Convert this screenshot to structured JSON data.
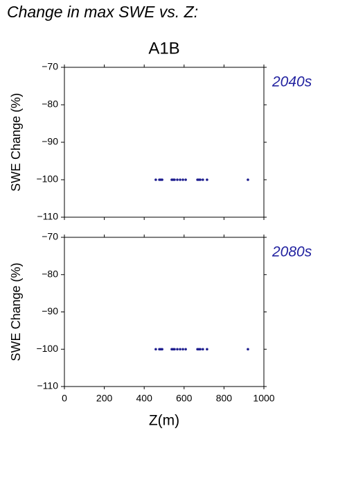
{
  "title": "Change in max SWE vs. Z:",
  "chart_data": [
    {
      "type": "scatter",
      "title": "A1B",
      "annotation": "2040s",
      "ylabel": "SWE Change (%)",
      "color": "#1c1c8e",
      "x": [
        458,
        476,
        483,
        490,
        538,
        545,
        552,
        566,
        580,
        594,
        608,
        667,
        674,
        681,
        694,
        715,
        920
      ],
      "y": [
        -100,
        -100,
        -100,
        -100,
        -100,
        -100,
        -100,
        -100,
        -100,
        -100,
        -100,
        -100,
        -100,
        -100,
        -100,
        -100,
        -100
      ],
      "xlim": [
        0,
        1000
      ],
      "xticks": [
        0,
        200,
        400,
        600,
        800,
        1000
      ],
      "ylim": [
        -110,
        -70
      ],
      "yticks": [
        {
          "value": -110,
          "label": "−110"
        },
        {
          "value": -100,
          "label": "−100"
        },
        {
          "value": -90,
          "label": "−90"
        },
        {
          "value": -80,
          "label": "−80"
        },
        {
          "value": -70,
          "label": "−70"
        }
      ]
    },
    {
      "type": "scatter",
      "annotation": "2080s",
      "ylabel": "SWE Change (%)",
      "xlabel": "Z(m)",
      "color": "#1c1c8e",
      "x": [
        458,
        476,
        483,
        490,
        538,
        545,
        552,
        566,
        580,
        594,
        608,
        667,
        674,
        681,
        694,
        715,
        920
      ],
      "y": [
        -100,
        -100,
        -100,
        -100,
        -100,
        -100,
        -100,
        -100,
        -100,
        -100,
        -100,
        -100,
        -100,
        -100,
        -100,
        -100,
        -100
      ],
      "xlim": [
        0,
        1000
      ],
      "xticks": [
        0,
        200,
        400,
        600,
        800,
        1000
      ],
      "ylim": [
        -110,
        -70
      ],
      "yticks": [
        {
          "value": -110,
          "label": "−110"
        },
        {
          "value": -100,
          "label": "−100"
        },
        {
          "value": -90,
          "label": "−90"
        },
        {
          "value": -80,
          "label": "−80"
        },
        {
          "value": -70,
          "label": "−70"
        }
      ]
    }
  ]
}
